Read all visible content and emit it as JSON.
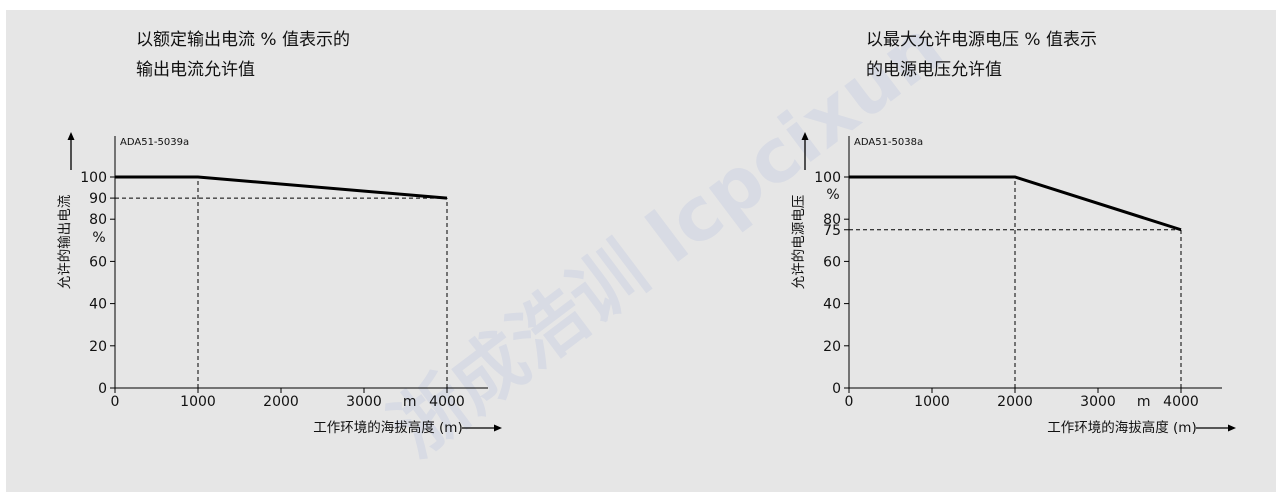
{
  "charts": [
    {
      "title_line1": "以额定输出电流 % 值表示的",
      "title_line2": "输出电流允许值"
    },
    {
      "title_line1": "以最大允许电源电压 % 值表示",
      "title_line2": "的电源电压允许值"
    }
  ],
  "colors": {
    "background": "#e6e6e6",
    "line": "#000000"
  },
  "watermark": "浙成浩训 lcpcixun",
  "chart_data": [
    {
      "type": "line",
      "id_label": "ADA51-5039a",
      "ylabel": "允许的输出电流",
      "xlabel": "工作环境的海拔高度 (m)",
      "x_unit_label": "m",
      "y_unit_label": "%",
      "xlim": [
        0,
        4500
      ],
      "ylim": [
        0,
        100
      ],
      "x_ticks": [
        0,
        1000,
        2000,
        3000,
        4000
      ],
      "y_ticks": [
        0,
        20,
        40,
        60,
        80,
        90,
        100
      ],
      "series": [
        {
          "x": [
            0,
            1000,
            4000
          ],
          "y": [
            100,
            100,
            90
          ]
        }
      ],
      "reference_lines": [
        {
          "kind": "vertical",
          "x": 1000,
          "y": 100
        },
        {
          "kind": "vertical",
          "x": 4000,
          "y": 90
        },
        {
          "kind": "horizontal",
          "y": 90,
          "x": 4000
        }
      ]
    },
    {
      "type": "line",
      "id_label": "ADA51-5038a",
      "ylabel": "允许的电源电压",
      "xlabel": "工作环境的海拔高度 (m)",
      "x_unit_label": "m",
      "y_unit_label": "%",
      "xlim": [
        0,
        4500
      ],
      "ylim": [
        0,
        100
      ],
      "x_ticks": [
        0,
        1000,
        2000,
        3000,
        4000
      ],
      "y_ticks": [
        0,
        20,
        40,
        60,
        75,
        80,
        100
      ],
      "series": [
        {
          "x": [
            0,
            2000,
            4000
          ],
          "y": [
            100,
            100,
            75
          ]
        }
      ],
      "reference_lines": [
        {
          "kind": "vertical",
          "x": 2000,
          "y": 100
        },
        {
          "kind": "vertical",
          "x": 4000,
          "y": 75
        },
        {
          "kind": "horizontal",
          "y": 75,
          "x": 4000
        }
      ]
    }
  ]
}
